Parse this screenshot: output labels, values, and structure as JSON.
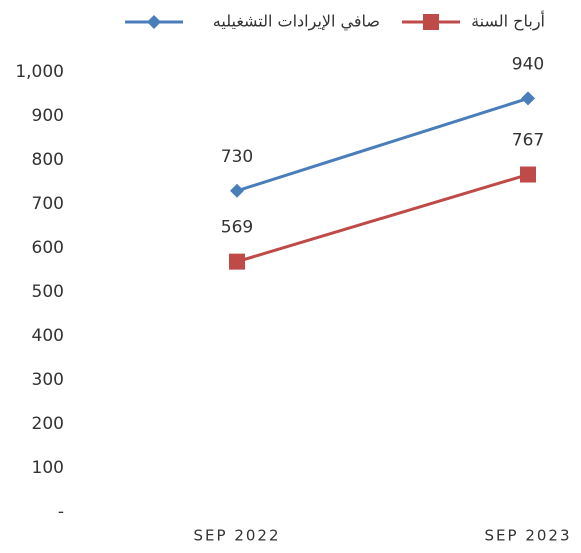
{
  "chart_data": {
    "type": "line",
    "categories": [
      "SEP 2022",
      "SEP 2023"
    ],
    "series": [
      {
        "name": "صافي الإيرادات التشغيليه",
        "color": "#4a7ebb",
        "marker": "diamond",
        "values": [
          730,
          940
        ]
      },
      {
        "name": "أرباح السنة",
        "color": "#be4b48",
        "marker": "square",
        "values": [
          569,
          767
        ]
      }
    ],
    "ylim": [
      0,
      1000
    ],
    "yticks": [
      {
        "value": 0,
        "label": "-"
      },
      100,
      200,
      300,
      400,
      500,
      600,
      700,
      800,
      900,
      {
        "value": 1000,
        "label": "1,000"
      }
    ],
    "grid": false,
    "legend": "top"
  }
}
